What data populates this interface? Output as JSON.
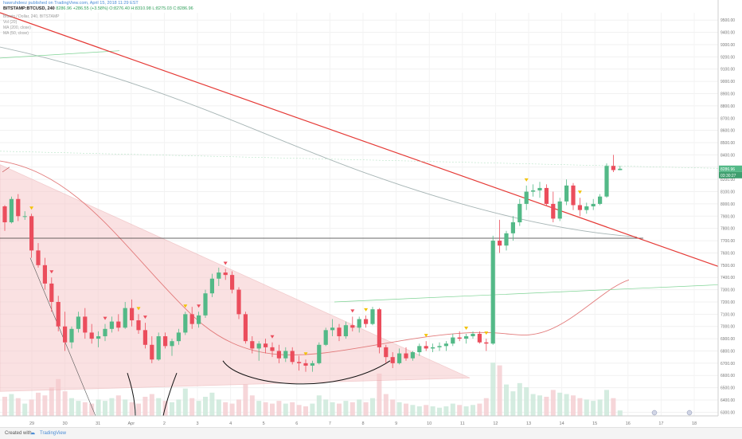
{
  "header": {
    "publisher_line": "hawruhdeez published on TradingView.com, April 15, 2018 11:29 EST",
    "symbol": "BITSTAMP:BTCUSD, 240",
    "change": "8286.96  +286.55 (+3.58%)",
    "ohlc": "O:8276.40  H:8310.98  L:8275.03  C:8286.96"
  },
  "indicators": [
    "Bitcoin / Dollar, 240, BITSTAMP",
    "Vol (20)",
    "MA (200, close)",
    "MA (50, close)"
  ],
  "price_badges": {
    "last_price": "8286.96",
    "countdown": "03:30:27"
  },
  "x_axis_labels": [
    "29",
    "30",
    "31",
    "Apr",
    "2",
    "3",
    "4",
    "5",
    "6",
    "7",
    "8",
    "9",
    "10",
    "11",
    "12",
    "13",
    "14",
    "15",
    "16",
    "17",
    "18"
  ],
  "y_axis": {
    "ticks": [
      "9500.00",
      "9400.00",
      "9300.00",
      "9200.00",
      "9100.00",
      "9000.00",
      "8900.00",
      "8800.00",
      "8700.00",
      "8600.00",
      "8500.00",
      "8400.00",
      "8300.00",
      "8200.00",
      "8100.00",
      "8000.00",
      "7900.00",
      "7800.00",
      "7700.00",
      "7600.00",
      "7500.00",
      "7400.00",
      "7300.00",
      "7200.00",
      "7100.00",
      "7000.00",
      "6900.00",
      "6800.00",
      "6700.00",
      "6600.00",
      "6500.00",
      "6400.00",
      "6300.00"
    ]
  },
  "footer": {
    "created_with": "Created with",
    "brand": "TradingView"
  },
  "colors": {
    "up": "#53b987",
    "down": "#eb4d5c",
    "trendline": "#e53935",
    "wedge_fill": "#f6c9cb",
    "axis_text": "#777777"
  },
  "chart_data": {
    "type": "candlestick",
    "title": "",
    "xlabel": "",
    "ylabel": "",
    "ylim": [
      6270,
      9560
    ],
    "interval": "240",
    "candles": [
      [
        7980,
        7990,
        7780,
        7850
      ],
      [
        7850,
        8060,
        7840,
        8040
      ],
      [
        8040,
        8080,
        7860,
        7900
      ],
      [
        7900,
        7940,
        7870,
        7900
      ],
      [
        7900,
        7920,
        7560,
        7620
      ],
      [
        7620,
        7680,
        7480,
        7500
      ],
      [
        7500,
        7560,
        7300,
        7350
      ],
      [
        7350,
        7400,
        7120,
        7200
      ],
      [
        7200,
        7250,
        6960,
        7000
      ],
      [
        7000,
        7120,
        6800,
        6870
      ],
      [
        6870,
        7000,
        6820,
        6980
      ],
      [
        6980,
        7120,
        6950,
        7080
      ],
      [
        7080,
        7150,
        6900,
        6950
      ],
      [
        6950,
        7020,
        6860,
        6900
      ],
      [
        6900,
        6960,
        6830,
        6920
      ],
      [
        6920,
        7020,
        6880,
        6980
      ],
      [
        6980,
        7080,
        6950,
        7040
      ],
      [
        7040,
        7100,
        6960,
        6990
      ],
      [
        6990,
        7200,
        6980,
        7150
      ],
      [
        7150,
        7220,
        7000,
        7050
      ],
      [
        7050,
        7100,
        6940,
        6970
      ],
      [
        6970,
        7030,
        6820,
        6850
      ],
      [
        6850,
        6920,
        6700,
        6730
      ],
      [
        6730,
        6950,
        6720,
        6920
      ],
      [
        6920,
        6950,
        6820,
        6840
      ],
      [
        6840,
        6900,
        6760,
        6880
      ],
      [
        6880,
        6980,
        6850,
        6950
      ],
      [
        6950,
        7120,
        6930,
        7100
      ],
      [
        7100,
        7160,
        6980,
        7020
      ],
      [
        7020,
        7120,
        6990,
        7090
      ],
      [
        7090,
        7300,
        7070,
        7270
      ],
      [
        7270,
        7430,
        7240,
        7390
      ],
      [
        7390,
        7480,
        7330,
        7440
      ],
      [
        7440,
        7470,
        7380,
        7420
      ],
      [
        7420,
        7450,
        7270,
        7300
      ],
      [
        7300,
        7320,
        7060,
        7100
      ],
      [
        7100,
        7120,
        6860,
        6880
      ],
      [
        6880,
        6920,
        6780,
        6820
      ],
      [
        6820,
        6880,
        6720,
        6860
      ],
      [
        6860,
        6900,
        6780,
        6830
      ],
      [
        6830,
        6870,
        6750,
        6800
      ],
      [
        6800,
        6850,
        6700,
        6740
      ],
      [
        6740,
        6830,
        6710,
        6800
      ],
      [
        6800,
        6830,
        6690,
        6710
      ],
      [
        6710,
        6760,
        6640,
        6700
      ],
      [
        6700,
        6730,
        6630,
        6680
      ],
      [
        6680,
        6720,
        6630,
        6700
      ],
      [
        6700,
        6870,
        6690,
        6850
      ],
      [
        6850,
        6990,
        6840,
        6970
      ],
      [
        6970,
        7060,
        6920,
        6990
      ],
      [
        6990,
        7020,
        6880,
        6920
      ],
      [
        6920,
        7040,
        6900,
        7010
      ],
      [
        7010,
        7080,
        6960,
        6990
      ],
      [
        6990,
        7080,
        6950,
        7060
      ],
      [
        7060,
        7090,
        6990,
        7020
      ],
      [
        7020,
        7160,
        7010,
        7140
      ],
      [
        7140,
        7150,
        6780,
        6830
      ],
      [
        6830,
        6850,
        6700,
        6750
      ],
      [
        6750,
        6790,
        6660,
        6700
      ],
      [
        6700,
        6820,
        6690,
        6780
      ],
      [
        6780,
        6830,
        6720,
        6740
      ],
      [
        6740,
        6800,
        6720,
        6790
      ],
      [
        6790,
        6860,
        6760,
        6840
      ],
      [
        6840,
        6880,
        6800,
        6820
      ],
      [
        6820,
        6860,
        6790,
        6830
      ],
      [
        6830,
        6870,
        6800,
        6840
      ],
      [
        6840,
        6880,
        6800,
        6860
      ],
      [
        6860,
        6940,
        6840,
        6910
      ],
      [
        6910,
        6960,
        6880,
        6900
      ],
      [
        6900,
        6940,
        6860,
        6920
      ],
      [
        6920,
        6960,
        6900,
        6940
      ],
      [
        6940,
        6960,
        6860,
        6870
      ],
      [
        6870,
        6900,
        6800,
        6860
      ],
      [
        6860,
        7740,
        6850,
        7700
      ],
      [
        7700,
        7870,
        7600,
        7660
      ],
      [
        7660,
        7780,
        7620,
        7760
      ],
      [
        7760,
        7900,
        7700,
        7850
      ],
      [
        7850,
        8040,
        7820,
        8000
      ],
      [
        8000,
        8150,
        7950,
        8100
      ],
      [
        8100,
        8160,
        8060,
        8110
      ],
      [
        8110,
        8180,
        8050,
        8130
      ],
      [
        8130,
        8160,
        7980,
        8000
      ],
      [
        8000,
        8100,
        7850,
        7880
      ],
      [
        7880,
        8050,
        7860,
        8020
      ],
      [
        8020,
        8200,
        7990,
        8150
      ],
      [
        8150,
        8170,
        7950,
        7990
      ],
      [
        7990,
        8050,
        7900,
        7950
      ],
      [
        7950,
        8010,
        7920,
        7980
      ],
      [
        7980,
        8040,
        7950,
        8000
      ],
      [
        8000,
        8080,
        7990,
        8060
      ],
      [
        8060,
        8330,
        8050,
        8310
      ],
      [
        8310,
        8400,
        8260,
        8276
      ],
      [
        8276,
        8311,
        8275,
        8287
      ]
    ],
    "volume": [
      1400,
      1600,
      1300,
      900,
      1200,
      1700,
      1500,
      2100,
      2700,
      1800,
      1300,
      1100,
      1000,
      900,
      1200,
      1100,
      1300,
      1500,
      1200,
      1000,
      900,
      1400,
      1600,
      1300,
      1100,
      1000,
      1200,
      2000,
      1300,
      1100,
      1400,
      1700,
      1200,
      1000,
      900,
      1200,
      2300,
      1500,
      1100,
      1000,
      900,
      1100,
      900,
      1000,
      800,
      700,
      900,
      1500,
      1200,
      1000,
      900,
      1100,
      1000,
      1200,
      1000,
      1300,
      3100,
      1600,
      1200,
      1000,
      900,
      800,
      700,
      800,
      700,
      600,
      700,
      900,
      800,
      700,
      800,
      900,
      1300,
      3900,
      3700,
      2300,
      1800,
      2400,
      2100,
      1600,
      1500,
      1400,
      1900,
      1700,
      1600,
      1500,
      1300,
      1200,
      1100,
      1200,
      1900,
      1300,
      400
    ],
    "volume_range": [
      0,
      7000
    ],
    "signals_sell_candles": [
      7,
      15,
      21,
      29,
      33,
      40,
      52
    ],
    "signals_buy_candles": [
      4,
      20,
      27,
      45,
      54,
      63,
      69,
      72,
      78,
      86
    ],
    "drawings": [
      "descending trendline (red)",
      "horizontal support ~7720",
      "falling wedge (shaded)",
      "MA 200",
      "MA 50"
    ],
    "grid": true
  }
}
